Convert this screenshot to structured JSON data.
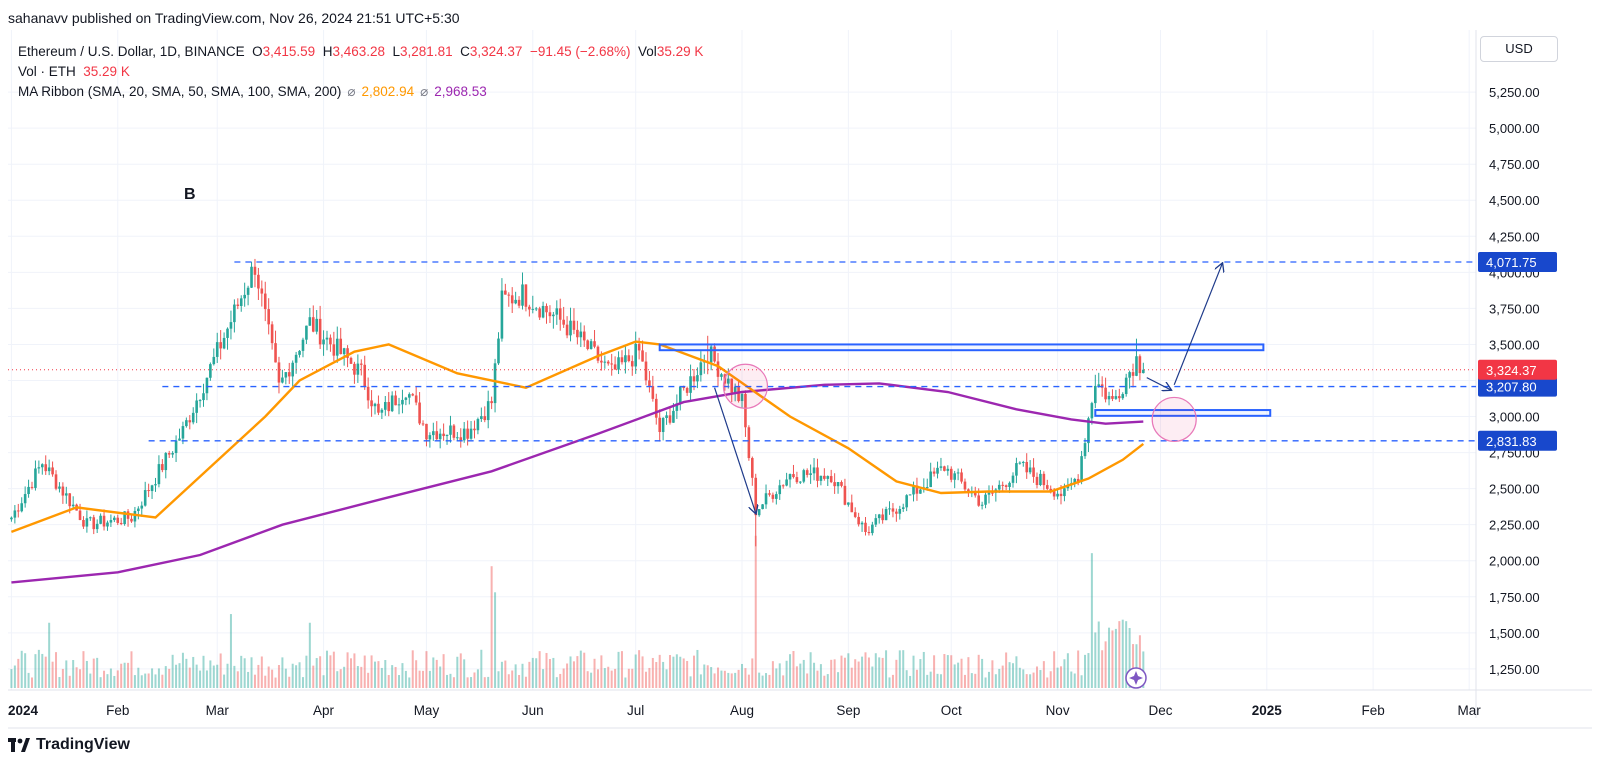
{
  "publisher": "sahanavv published on TradingView.com, Nov 26, 2024 21:51 UTC+5:30",
  "legend": {
    "symbol": "Ethereum / U.S. Dollar, 1D, BINANCE",
    "open_label": "O",
    "open": "3,415.59",
    "high_label": "H",
    "high": "3,463.28",
    "low_label": "L",
    "low": "3,281.81",
    "close_label": "C",
    "close": "3,324.37",
    "change": "−91.45 (−2.68%)",
    "vol_label": "Vol",
    "vol": "35.29 K",
    "vol_eth_label": "Vol · ETH",
    "vol_eth": "35.29 K",
    "ma_label": "MA Ribbon (SMA, 20, SMA, 50, SMA, 100, SMA, 200)",
    "ma_symbol": "⌀",
    "ma_value_1": "2,802.94",
    "ma_value_2": "2,968.53"
  },
  "currency": "USD",
  "brand": "TradingView",
  "annotation_letter": "B",
  "colors": {
    "up": "#26a69a",
    "down": "#ef5350",
    "ma50": "#ff9800",
    "ma200": "#9c27b0",
    "level": "#2962ff",
    "zone": "#2962ff",
    "arrow": "#1e3a8a",
    "tag": "#1848cc",
    "price_tag": "#f23645"
  },
  "chart_data": {
    "type": "candlestick",
    "title": "Ethereum / U.S. Dollar, 1D, BINANCE",
    "y_axis": {
      "ticks": [
        "5,250.00",
        "5,000.00",
        "4,750.00",
        "4,500.00",
        "4,250.00",
        "4,000.00",
        "3,750.00",
        "3,500.00",
        "3,250.00",
        "3,000.00",
        "2,750.00",
        "2,500.00",
        "2,250.00",
        "2,000.00",
        "1,750.00",
        "1,500.00",
        "1,250.00"
      ],
      "range": [
        1150,
        5450
      ]
    },
    "x_axis": {
      "ticks": [
        "2024",
        "Feb",
        "Mar",
        "Apr",
        "May",
        "Jun",
        "Jul",
        "Aug",
        "Sep",
        "Oct",
        "Nov",
        "Dec",
        "2025",
        "Feb",
        "Mar"
      ],
      "bold_ticks": [
        "2024",
        "2025"
      ]
    },
    "levels": [
      {
        "value": 4071.75,
        "label": "4,071.75"
      },
      {
        "value": 3207.8,
        "label": "3,207.80"
      },
      {
        "value": 2831.83,
        "label": "2,831.83"
      }
    ],
    "last_price": {
      "value": 3324.37,
      "label": "3,324.37"
    },
    "zones": [
      {
        "from": "2024-07-08",
        "to": "2024-12-31",
        "low": 3460,
        "high": 3500
      },
      {
        "from": "2024-11-12",
        "to": "2025-01-02",
        "low": 3005,
        "high": 3045
      }
    ],
    "ohlc_anchor_path": [
      [
        "2024-01-01",
        2300
      ],
      [
        "2024-01-10",
        2680
      ],
      [
        "2024-01-23",
        2250
      ],
      [
        "2024-02-05",
        2300
      ],
      [
        "2024-02-20",
        2900
      ],
      [
        "2024-03-02",
        3500
      ],
      [
        "2024-03-12",
        4050
      ],
      [
        "2024-03-19",
        3200
      ],
      [
        "2024-03-28",
        3650
      ],
      [
        "2024-04-12",
        3300
      ],
      [
        "2024-04-17",
        3000
      ],
      [
        "2024-04-25",
        3200
      ],
      [
        "2024-05-01",
        2900
      ],
      [
        "2024-05-13",
        2900
      ],
      [
        "2024-05-20",
        3100
      ],
      [
        "2024-05-23",
        3800
      ],
      [
        "2024-05-29",
        3850
      ],
      [
        "2024-06-10",
        3650
      ],
      [
        "2024-06-24",
        3300
      ],
      [
        "2024-07-02",
        3450
      ],
      [
        "2024-07-08",
        2900
      ],
      [
        "2024-07-22",
        3450
      ],
      [
        "2024-08-01",
        3100
      ],
      [
        "2024-08-05",
        2350
      ],
      [
        "2024-08-15",
        2600
      ],
      [
        "2024-08-27",
        2600
      ],
      [
        "2024-09-06",
        2200
      ],
      [
        "2024-09-14",
        2350
      ],
      [
        "2024-09-29",
        2650
      ],
      [
        "2024-10-10",
        2400
      ],
      [
        "2024-10-21",
        2650
      ],
      [
        "2024-11-03",
        2450
      ],
      [
        "2024-11-07",
        2600
      ],
      [
        "2024-11-12",
        3250
      ],
      [
        "2024-11-17",
        3100
      ],
      [
        "2024-11-24",
        3400
      ],
      [
        "2024-11-26",
        3324
      ]
    ],
    "notable_wicks": [
      {
        "date": "2024-08-05",
        "low": 2100
      },
      {
        "date": "2024-03-12",
        "high": 4093
      },
      {
        "date": "2024-07-22",
        "high": 3560
      },
      {
        "date": "2024-11-24",
        "high": 3540
      }
    ],
    "sma50_path": [
      [
        "2024-01-01",
        2200
      ],
      [
        "2024-01-20",
        2370
      ],
      [
        "2024-02-12",
        2300
      ],
      [
        "2024-02-28",
        2650
      ],
      [
        "2024-03-15",
        3000
      ],
      [
        "2024-03-25",
        3250
      ],
      [
        "2024-04-10",
        3450
      ],
      [
        "2024-04-20",
        3500
      ],
      [
        "2024-05-10",
        3300
      ],
      [
        "2024-05-30",
        3200
      ],
      [
        "2024-06-20",
        3420
      ],
      [
        "2024-07-01",
        3520
      ],
      [
        "2024-07-08",
        3500
      ],
      [
        "2024-07-25",
        3350
      ],
      [
        "2024-08-15",
        3000
      ],
      [
        "2024-09-01",
        2780
      ],
      [
        "2024-09-15",
        2550
      ],
      [
        "2024-09-28",
        2470
      ],
      [
        "2024-10-12",
        2480
      ],
      [
        "2024-10-30",
        2480
      ],
      [
        "2024-11-10",
        2570
      ],
      [
        "2024-11-20",
        2700
      ],
      [
        "2024-11-26",
        2810
      ]
    ],
    "sma200_path": [
      [
        "2024-01-01",
        1850
      ],
      [
        "2024-02-01",
        1920
      ],
      [
        "2024-02-25",
        2040
      ],
      [
        "2024-03-20",
        2250
      ],
      [
        "2024-04-20",
        2440
      ],
      [
        "2024-05-20",
        2620
      ],
      [
        "2024-06-20",
        2880
      ],
      [
        "2024-07-15",
        3100
      ],
      [
        "2024-08-01",
        3170
      ],
      [
        "2024-08-25",
        3220
      ],
      [
        "2024-09-10",
        3230
      ],
      [
        "2024-09-30",
        3170
      ],
      [
        "2024-10-20",
        3050
      ],
      [
        "2024-11-05",
        2980
      ],
      [
        "2024-11-15",
        2950
      ],
      [
        "2024-11-26",
        2965
      ]
    ],
    "volume": {
      "unit": "K",
      "spikes": [
        {
          "date": "2024-01-12",
          "value": 0.75
        },
        {
          "date": "2024-03-05",
          "value": 0.85
        },
        {
          "date": "2024-03-28",
          "value": 0.75
        },
        {
          "date": "2024-05-20",
          "value": 1.4
        },
        {
          "date": "2024-05-21",
          "value": 1.1
        },
        {
          "date": "2024-08-05",
          "value": 1.75
        },
        {
          "date": "2024-11-11",
          "value": 1.55
        }
      ]
    },
    "projection": {
      "drop_arrow": [
        [
          "2024-07-24",
          3200
        ],
        [
          "2024-08-05",
          2330
        ]
      ],
      "pullback_arrow": [
        [
          "2024-11-27",
          3270
        ],
        [
          "2024-12-04",
          3185
        ]
      ],
      "target_arrow": [
        [
          "2024-12-05",
          3220
        ],
        [
          "2024-12-19",
          4060
        ]
      ]
    },
    "circles": [
      {
        "date": "2024-08-02",
        "value": 3210
      },
      {
        "date": "2024-12-05",
        "value": 2980
      }
    ]
  }
}
